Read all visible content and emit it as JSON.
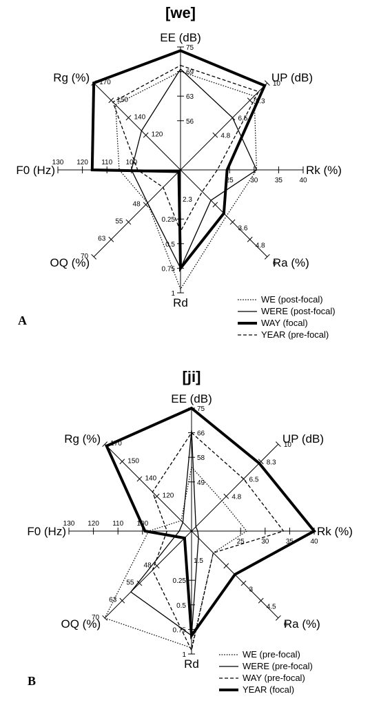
{
  "chart_data": [
    {
      "type": "radar",
      "panel_letter": "A",
      "title": "[we]",
      "axes": [
        {
          "label": "EE (dB)",
          "ticks": [
            "75",
            "69",
            "63",
            "56"
          ]
        },
        {
          "label": "UP (dB)",
          "ticks": [
            "10",
            "8.3",
            "6.5",
            "4.8"
          ]
        },
        {
          "label": "Rk (%)",
          "ticks": [
            "40",
            "35",
            "30",
            "25"
          ]
        },
        {
          "label": "Ra (%)",
          "ticks": [
            "6",
            "4.8",
            "3.6"
          ]
        },
        {
          "label": "Rd",
          "ticks": [
            "1",
            "0.75",
            "0.5",
            "0.25"
          ]
        },
        {
          "label": "OQ (%)",
          "ticks": [
            "70",
            "63",
            "55",
            "48"
          ]
        },
        {
          "label": "F0 (Hz)",
          "ticks": [
            "130",
            "120",
            "110",
            "100"
          ]
        },
        {
          "label": "Rg (%)",
          "ticks": [
            "170",
            "150",
            "140",
            "120"
          ]
        }
      ],
      "center_label": "2.3",
      "series": [
        {
          "name": "WE (post-focal)",
          "style": "dotted",
          "values": [
            0.8,
            0.85,
            0.62,
            0.53,
            0.97,
            0.38,
            0.5,
            0.75
          ]
        },
        {
          "name": "WERE (post-focal)",
          "style": "solid",
          "values": [
            0.82,
            0.6,
            0.62,
            0.35,
            0.8,
            0.38,
            0.4,
            0.45
          ]
        },
        {
          "name": "WAY (focal)",
          "style": "bold",
          "values": [
            0.97,
            0.97,
            0.38,
            0.5,
            0.8,
            0.02,
            0.72,
            1.0
          ]
        },
        {
          "name": "YEAR (pre-focal)",
          "style": "dashed",
          "values": [
            0.85,
            0.9,
            0.3,
            0.25,
            0.5,
            0.2,
            0.35,
            0.78
          ]
        }
      ]
    },
    {
      "type": "radar",
      "panel_letter": "B",
      "title": "[ji]",
      "axes": [
        {
          "label": "EE (dB)",
          "ticks": [
            "75",
            "66",
            "58",
            "49"
          ]
        },
        {
          "label": "UP (dB)",
          "ticks": [
            "10",
            "8.3",
            "6.5",
            "4.8"
          ]
        },
        {
          "label": "Rk (%)",
          "ticks": [
            "40",
            "35",
            "30",
            "25"
          ]
        },
        {
          "label": "Ra (%)",
          "ticks": [
            "6",
            "4.5",
            "3"
          ]
        },
        {
          "label": "Rd",
          "ticks": [
            "1",
            "0.75",
            "0.5",
            "0.25"
          ]
        },
        {
          "label": "OQ (%)",
          "ticks": [
            "70",
            "63",
            "55",
            "48"
          ]
        },
        {
          "label": "F0 (Hz)",
          "ticks": [
            "130",
            "120",
            "110",
            "100"
          ]
        },
        {
          "label": "Rg (%)",
          "ticks": [
            "170",
            "150",
            "140",
            "120"
          ]
        }
      ],
      "center_label": "1.5",
      "series": [
        {
          "name": "WE (pre-focal)",
          "style": "dotted",
          "values": [
            0.52,
            0.35,
            0.45,
            0.25,
            0.95,
            1.0,
            0.35,
            0.12
          ]
        },
        {
          "name": "WERE (pre-focal)",
          "style": "solid",
          "values": [
            0.82,
            0.05,
            0.05,
            0.08,
            0.85,
            0.7,
            0.1,
            0.1
          ]
        },
        {
          "name": "WAY (pre-focal)",
          "style": "dashed",
          "values": [
            0.8,
            0.6,
            0.75,
            0.25,
            0.97,
            0.45,
            0.2,
            0.45
          ]
        },
        {
          "name": "YEAR (focal)",
          "style": "bold",
          "values": [
            1.0,
            0.78,
            1.0,
            0.5,
            0.85,
            0.08,
            0.38,
            0.98
          ]
        }
      ]
    }
  ]
}
